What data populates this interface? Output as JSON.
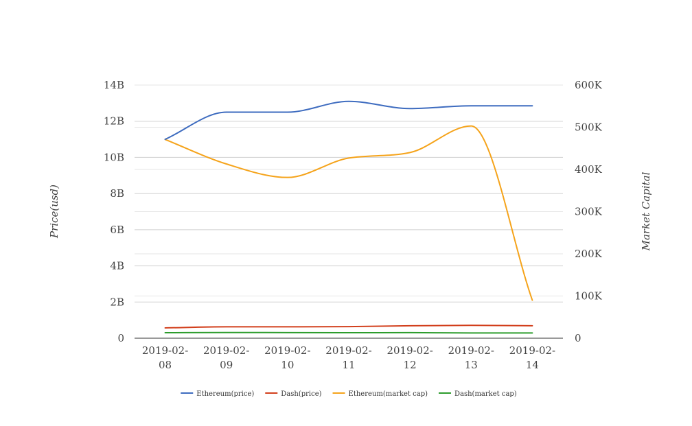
{
  "chart_data": {
    "type": "line",
    "title": "",
    "categories": [
      "2019-02-08",
      "2019-02-09",
      "2019-02-10",
      "2019-02-11",
      "2019-02-12",
      "2019-02-13",
      "2019-02-14"
    ],
    "category_labels": [
      [
        "2019-02-",
        "08"
      ],
      [
        "2019-02-",
        "09"
      ],
      [
        "2019-02-",
        "10"
      ],
      [
        "2019-02-",
        "11"
      ],
      [
        "2019-02-",
        "12"
      ],
      [
        "2019-02-",
        "13"
      ],
      [
        "2019-02-",
        "14"
      ]
    ],
    "y_left": {
      "label": "Price(usd)",
      "ylim": [
        0,
        14000000000
      ],
      "ticks": [
        0,
        2000000000,
        4000000000,
        6000000000,
        8000000000,
        10000000000,
        12000000000,
        14000000000
      ],
      "tick_labels": [
        "0",
        "2B",
        "4B",
        "6B",
        "8B",
        "10B",
        "12B",
        "14B"
      ]
    },
    "y_right": {
      "label": "Market Capital",
      "ylim": [
        0,
        600000
      ],
      "ticks": [
        0,
        100000,
        200000,
        300000,
        400000,
        500000,
        600000
      ],
      "tick_labels": [
        "0",
        "100K",
        "200K",
        "300K",
        "400K",
        "500K",
        "600K"
      ]
    },
    "grid": true,
    "legend_position": "bottom",
    "series": [
      {
        "name": "Ethereum(price)",
        "axis": "left",
        "color": "#3d6bbf",
        "values": [
          11000000000,
          12500000000,
          12500000000,
          13100000000,
          12700000000,
          12850000000,
          12850000000
        ]
      },
      {
        "name": "Dash(price)",
        "axis": "left",
        "color": "#d23f1c",
        "values": [
          570000000,
          630000000,
          630000000,
          640000000,
          690000000,
          710000000,
          690000000
        ]
      },
      {
        "name": "Ethereum(market cap)",
        "axis": "right",
        "color": "#f5a31a",
        "values": [
          471000,
          413000,
          381000,
          427000,
          440000,
          503000,
          90000
        ]
      },
      {
        "name": "Dash(market cap)",
        "axis": "right",
        "color": "#2c9c2c",
        "values": [
          13000,
          13500,
          13200,
          13000,
          13200,
          12500,
          12500
        ]
      }
    ]
  }
}
